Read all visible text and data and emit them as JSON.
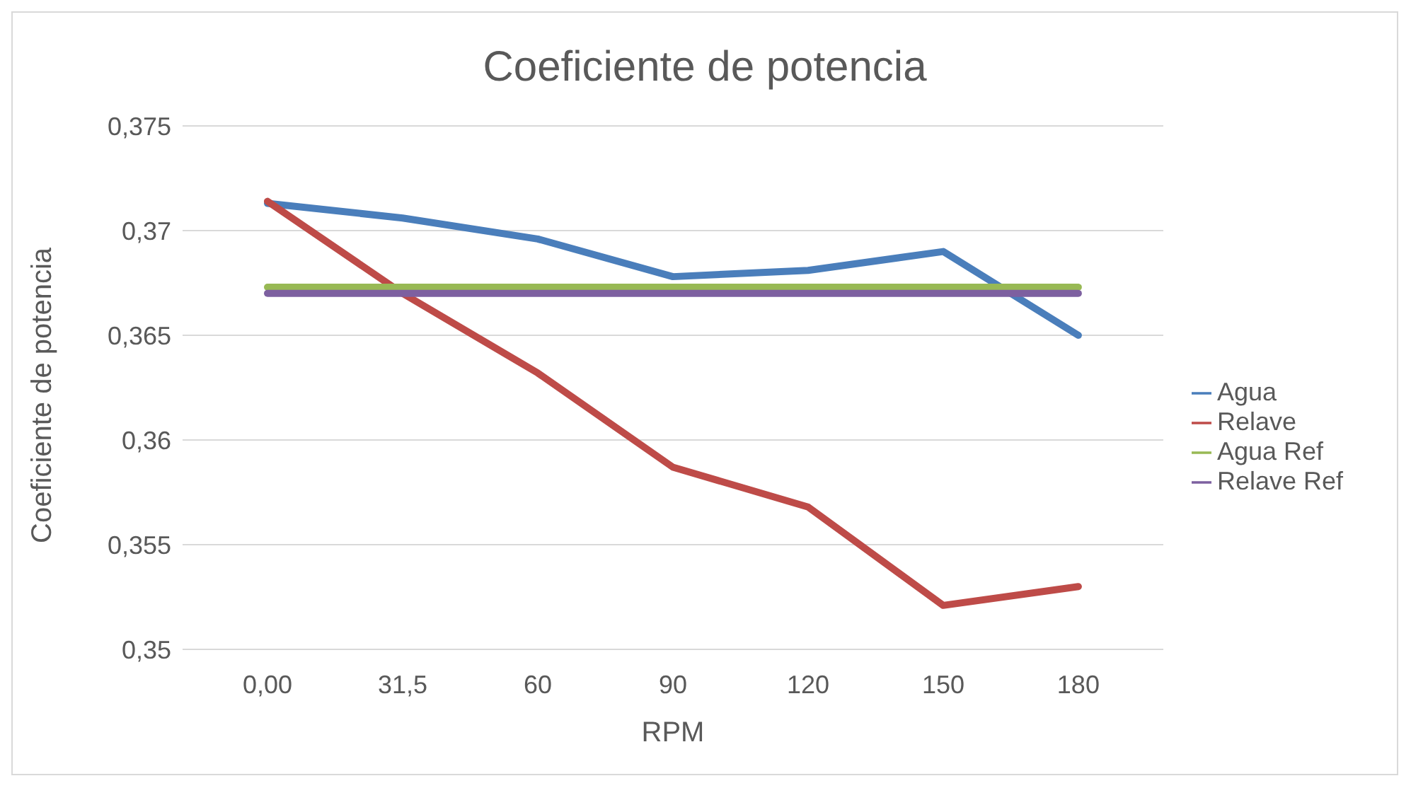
{
  "chart_data": {
    "type": "line",
    "title": "Coeficiente de potencia",
    "xlabel": "RPM",
    "ylabel": "Coeficiente de potencia",
    "categories": [
      "0,00",
      "31,5",
      "60",
      "90",
      "120",
      "150",
      "180"
    ],
    "series": [
      {
        "name": "Agua",
        "color": "#4a7ebb",
        "values": [
          0.3713,
          0.3706,
          0.3696,
          0.3678,
          0.3681,
          0.369,
          0.365
        ]
      },
      {
        "name": "Relave",
        "color": "#be4b48",
        "values": [
          0.3714,
          0.367,
          0.3632,
          0.3587,
          0.3568,
          0.3521,
          0.353
        ]
      },
      {
        "name": "Agua Ref",
        "color": "#98b954",
        "values": [
          0.3673,
          0.3673,
          0.3673,
          0.3673,
          0.3673,
          0.3673,
          0.3673
        ]
      },
      {
        "name": "Relave Ref",
        "color": "#7d60a0",
        "values": [
          0.367,
          0.367,
          0.367,
          0.367,
          0.367,
          0.367,
          0.367
        ]
      }
    ],
    "ylim": [
      0.35,
      0.375
    ],
    "yticks": [
      {
        "value": 0.35,
        "label": "0,35"
      },
      {
        "value": 0.355,
        "label": "0,355"
      },
      {
        "value": 0.36,
        "label": "0,36"
      },
      {
        "value": 0.365,
        "label": "0,365"
      },
      {
        "value": 0.37,
        "label": "0,37"
      },
      {
        "value": 0.375,
        "label": "0,375"
      }
    ],
    "grid": "y",
    "legend": "right",
    "marker": "none",
    "line_style": "solid"
  }
}
